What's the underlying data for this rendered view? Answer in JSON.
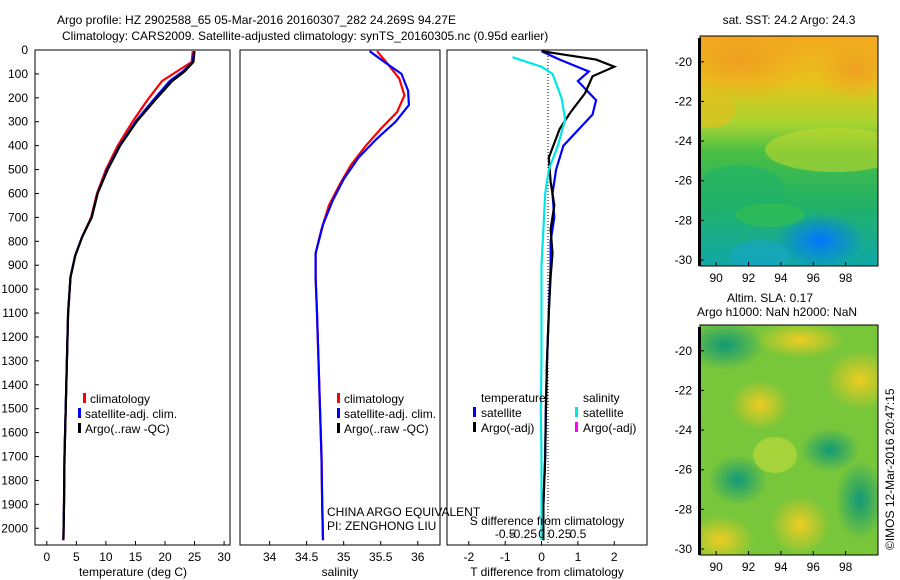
{
  "header": {
    "line1": "Argo profile: HZ 2902588_65 05-Mar-2016 20160307_282 24.269S 94.27E",
    "line2": "Climatology: CARS2009. Satellite-adjusted climatology: synTS_20160305.nc (0.95d earlier)"
  },
  "map1_title": "sat. SST: 24.2 Argo: 24.3",
  "map2_title_line1": "Altim. SLA: 0.17",
  "map2_title_line2": "Argo h1000: NaN h2000: NaN",
  "credit": "©IMOS 12-Mar-2016 20:47:15",
  "colors": {
    "climatology": "#ff0000",
    "satellite": "#0000ff",
    "argo": "#000000",
    "satellite_s": "#00e5e5",
    "argo_s": "#ff00ff"
  },
  "chart_data": [
    {
      "type": "line",
      "xlabel": "temperature (deg C)",
      "ylabel": "",
      "xlim": [
        -2,
        31
      ],
      "ylim": [
        2070,
        0
      ],
      "xticks": [
        "0",
        "5",
        "10",
        "15",
        "20",
        "25",
        "30"
      ],
      "yticks": [
        "0",
        "100",
        "200",
        "300",
        "400",
        "500",
        "600",
        "700",
        "800",
        "900",
        "1000",
        "1100",
        "1200",
        "1300",
        "1400",
        "1500",
        "1600",
        "1700",
        "1800",
        "1900",
        "2000"
      ],
      "legend": {
        "position": "lower-left",
        "entries": [
          "climatology",
          "satellite-adj. clim.",
          "Argo(..raw -QC)"
        ]
      },
      "series": [
        {
          "name": "climatology",
          "color": "#ff0000",
          "points": [
            [
              24.7,
              5
            ],
            [
              24.5,
              50
            ],
            [
              22,
              90
            ],
            [
              19.5,
              130
            ],
            [
              17,
              210
            ],
            [
              14.5,
              300
            ],
            [
              12,
              400
            ],
            [
              10,
              500
            ],
            [
              8.5,
              600
            ],
            [
              7.5,
              700
            ],
            [
              6,
              780
            ],
            [
              4.8,
              860
            ],
            [
              4,
              950
            ],
            [
              3.6,
              1100
            ],
            [
              3.4,
              1300
            ],
            [
              3.2,
              1500
            ],
            [
              3,
              1700
            ],
            [
              2.9,
              1900
            ],
            [
              2.8,
              2050
            ]
          ]
        },
        {
          "name": "satellite-adj. clim.",
          "color": "#0000ff",
          "points": [
            [
              24.9,
              5
            ],
            [
              24.7,
              50
            ],
            [
              23,
              90
            ],
            [
              20.8,
              130
            ],
            [
              18,
              210
            ],
            [
              15,
              300
            ],
            [
              12.3,
              400
            ],
            [
              10.2,
              500
            ],
            [
              8.6,
              600
            ],
            [
              7.6,
              700
            ],
            [
              6,
              780
            ],
            [
              4.8,
              860
            ],
            [
              4,
              950
            ],
            [
              3.6,
              1100
            ],
            [
              3.4,
              1300
            ],
            [
              3.2,
              1500
            ],
            [
              3,
              1700
            ],
            [
              2.9,
              1900
            ],
            [
              2.8,
              2050
            ]
          ]
        },
        {
          "name": "Argo(..raw -QC)",
          "color": "#000000",
          "points": [
            [
              25,
              5
            ],
            [
              24.8,
              50
            ],
            [
              23.3,
              90
            ],
            [
              21.2,
              130
            ],
            [
              18.3,
              210
            ],
            [
              15.2,
              300
            ],
            [
              12.4,
              400
            ],
            [
              10.3,
              500
            ],
            [
              8.6,
              600
            ],
            [
              7.6,
              700
            ],
            [
              6,
              780
            ],
            [
              4.8,
              860
            ],
            [
              4,
              950
            ],
            [
              3.6,
              1100
            ],
            [
              3.4,
              1300
            ],
            [
              3.2,
              1500
            ],
            [
              3,
              1700
            ],
            [
              2.9,
              1900
            ],
            [
              2.8,
              2050
            ]
          ]
        }
      ]
    },
    {
      "type": "line",
      "xlabel": "salinity",
      "ylabel": "",
      "xlim": [
        33.6,
        36.3
      ],
      "ylim": [
        2070,
        0
      ],
      "xticks": [
        "34",
        "34.5",
        "35",
        "35.5",
        "36"
      ],
      "legend": {
        "position": "lower-right",
        "entries": [
          "climatology",
          "satellite-adj. clim.",
          "Argo(..raw -QC)"
        ]
      },
      "annotation_line1": "CHINA ARGO EQUIVALENT",
      "annotation_line2": "PI: ZENGHONG LIU",
      "series": [
        {
          "name": "climatology",
          "color": "#ff0000",
          "points": [
            [
              35.45,
              5
            ],
            [
              35.6,
              60
            ],
            [
              35.75,
              120
            ],
            [
              35.82,
              190
            ],
            [
              35.72,
              260
            ],
            [
              35.5,
              330
            ],
            [
              35.3,
              400
            ],
            [
              35.1,
              480
            ],
            [
              34.95,
              560
            ],
            [
              34.8,
              650
            ],
            [
              34.7,
              750
            ],
            [
              34.62,
              850
            ],
            [
              34.62,
              950
            ],
            [
              34.64,
              1100
            ],
            [
              34.66,
              1300
            ],
            [
              34.68,
              1500
            ],
            [
              34.7,
              1700
            ],
            [
              34.71,
              1900
            ],
            [
              34.72,
              2050
            ]
          ]
        },
        {
          "name": "satellite-adj. clim.",
          "color": "#0000ff",
          "points": [
            [
              35.35,
              5
            ],
            [
              35.55,
              50
            ],
            [
              35.78,
              100
            ],
            [
              35.87,
              170
            ],
            [
              35.88,
              230
            ],
            [
              35.7,
              300
            ],
            [
              35.45,
              370
            ],
            [
              35.2,
              450
            ],
            [
              35.0,
              540
            ],
            [
              34.85,
              630
            ],
            [
              34.72,
              730
            ],
            [
              34.62,
              850
            ],
            [
              34.62,
              950
            ],
            [
              34.64,
              1100
            ],
            [
              34.66,
              1300
            ],
            [
              34.68,
              1500
            ],
            [
              34.7,
              1700
            ],
            [
              34.71,
              1900
            ],
            [
              34.72,
              2050
            ]
          ]
        }
      ]
    },
    {
      "type": "line",
      "xlabel": "T difference from climatology",
      "ylabel": "",
      "xlim": [
        -2.6,
        2.9
      ],
      "ylim": [
        2070,
        0
      ],
      "xticks": [
        "-2",
        "-1",
        "0",
        "1",
        "2"
      ],
      "top_xlabel": "S difference from climatology",
      "top_xticks": [
        "-0.5",
        "-0.25",
        "0",
        "0.25",
        "0.5"
      ],
      "legend_temperature_header": "temperature",
      "legend_salinity_header": "salinity",
      "legend": {
        "position": "lower-center",
        "entries": [
          "satellite",
          "Argo(-adj)",
          "satellite",
          "Argo(-adj)"
        ]
      },
      "series": [
        {
          "name": "satellite",
          "color": "#0000ff",
          "points": [
            [
              0,
              5
            ],
            [
              0.5,
              40
            ],
            [
              1.3,
              90
            ],
            [
              1.0,
              130
            ],
            [
              1.5,
              210
            ],
            [
              1.4,
              270
            ],
            [
              0.6,
              400
            ],
            [
              0.4,
              500
            ],
            [
              0.3,
              600
            ],
            [
              0.35,
              700
            ],
            [
              0.25,
              800
            ],
            [
              0.25,
              900
            ],
            [
              0.2,
              1100
            ],
            [
              0.15,
              1300
            ],
            [
              0.12,
              1500
            ],
            [
              0.1,
              1700
            ],
            [
              0.05,
              1900
            ],
            [
              0.05,
              2050
            ]
          ]
        },
        {
          "name": "Argo(-adj)",
          "color": "#000000",
          "points": [
            [
              0,
              5
            ],
            [
              1.5,
              40
            ],
            [
              2.0,
              70
            ],
            [
              1.4,
              110
            ],
            [
              1.2,
              180
            ],
            [
              0.8,
              260
            ],
            [
              0.5,
              330
            ],
            [
              0.2,
              450
            ],
            [
              0.25,
              550
            ],
            [
              0.35,
              650
            ],
            [
              0.25,
              750
            ],
            [
              0.3,
              850
            ],
            [
              0.25,
              950
            ],
            [
              0.2,
              1100
            ],
            [
              0.15,
              1300
            ],
            [
              0.12,
              1500
            ],
            [
              0.1,
              1700
            ],
            [
              0.05,
              1900
            ],
            [
              0.05,
              2050
            ]
          ]
        },
        {
          "name": "satellite",
          "color": "#00e5e5",
          "points": [
            [
              -0.8,
              30
            ],
            [
              -0.4,
              50
            ],
            [
              0,
              70
            ],
            [
              0.3,
              100
            ],
            [
              0.55,
              200
            ],
            [
              0.65,
              290
            ],
            [
              0.45,
              400
            ],
            [
              0.2,
              500
            ],
            [
              0.1,
              600
            ],
            [
              0.05,
              750
            ],
            [
              0,
              900
            ],
            [
              0,
              1100
            ],
            [
              0,
              1300
            ],
            [
              -0.02,
              1500
            ],
            [
              0,
              1700
            ],
            [
              0,
              1900
            ],
            [
              0,
              2050
            ]
          ]
        }
      ]
    },
    {
      "type": "heatmap",
      "title": "sat. SST: 24.2 Argo: 24.3",
      "xlim": [
        89,
        100
      ],
      "ylim": [
        -30.3,
        -18.7
      ],
      "xticks": [
        "90",
        "92",
        "94",
        "96",
        "98"
      ],
      "yticks": [
        "-20",
        "-22",
        "-24",
        "-26",
        "-28",
        "-30"
      ],
      "colormap": [
        "#0055ff",
        "#0099ff",
        "#00c8a0",
        "#22bb55",
        "#66cc33",
        "#bbdd22",
        "#eecc11",
        "#f5a011"
      ]
    },
    {
      "type": "heatmap",
      "title": "Altim. SLA: 0.17",
      "xlim": [
        89,
        100
      ],
      "ylim": [
        -30.3,
        -18.7
      ],
      "xticks": [
        "90",
        "92",
        "94",
        "96",
        "98"
      ],
      "yticks": [
        "-20",
        "-22",
        "-24",
        "-26",
        "-28",
        "-30"
      ],
      "colormap": [
        "#0077cc",
        "#22aa66",
        "#55bb33",
        "#99cc33",
        "#dddd22",
        "#eebb22"
      ]
    }
  ]
}
